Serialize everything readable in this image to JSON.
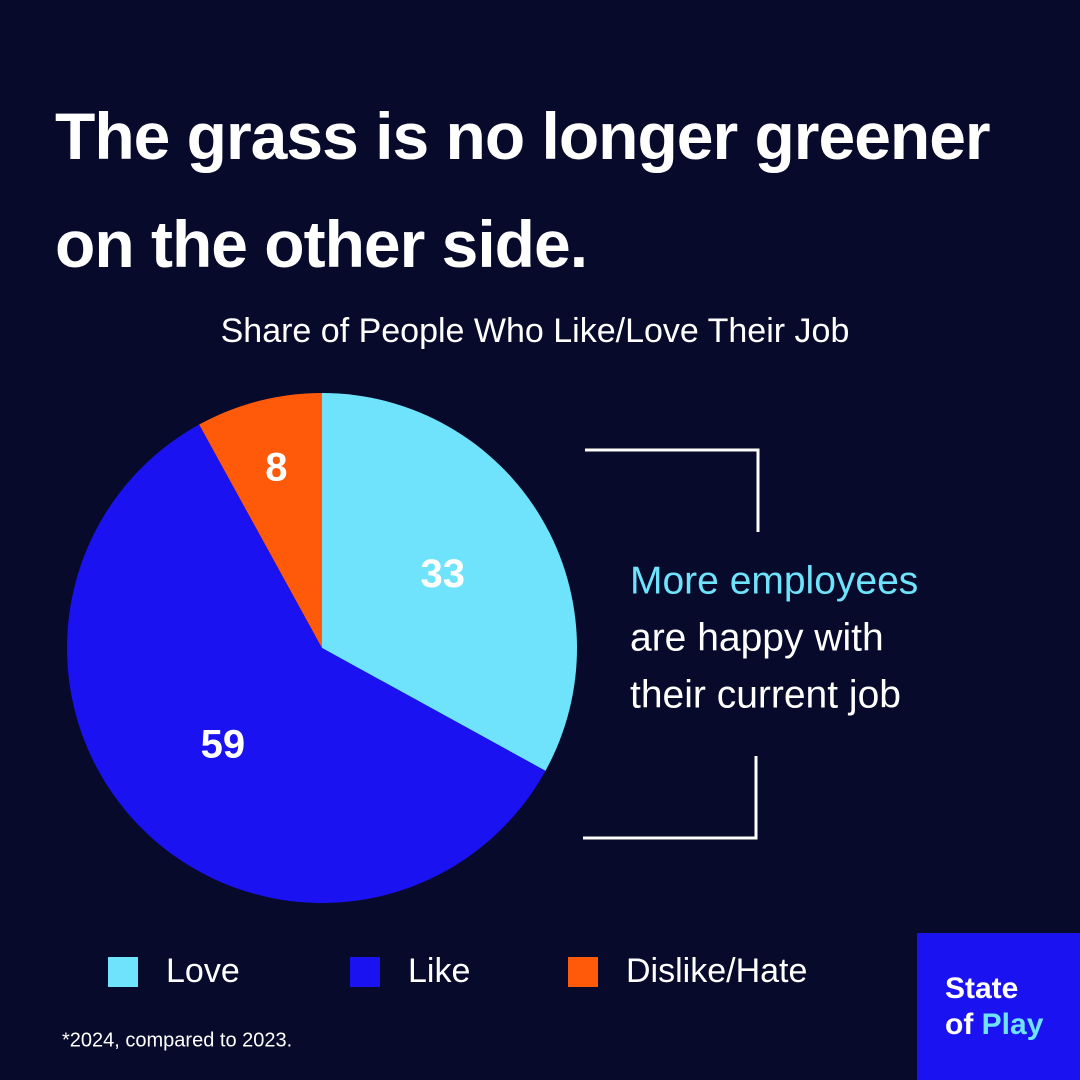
{
  "chart_data": {
    "type": "pie",
    "title": "The grass is no longer greener on the other side.",
    "subtitle": "Share of People Who Like/Love Their Job",
    "categories": [
      "Love",
      "Like",
      "Dislike/Hate"
    ],
    "values": [
      33,
      59,
      8
    ],
    "colors": [
      "#6ee3fb",
      "#1a12f0",
      "#ff5a0a"
    ],
    "annotation": [
      "More employees",
      "are happy with",
      "their current job"
    ],
    "footnote": "*2024, compared to 2023."
  },
  "logo": [
    "State",
    "of",
    "Play"
  ]
}
